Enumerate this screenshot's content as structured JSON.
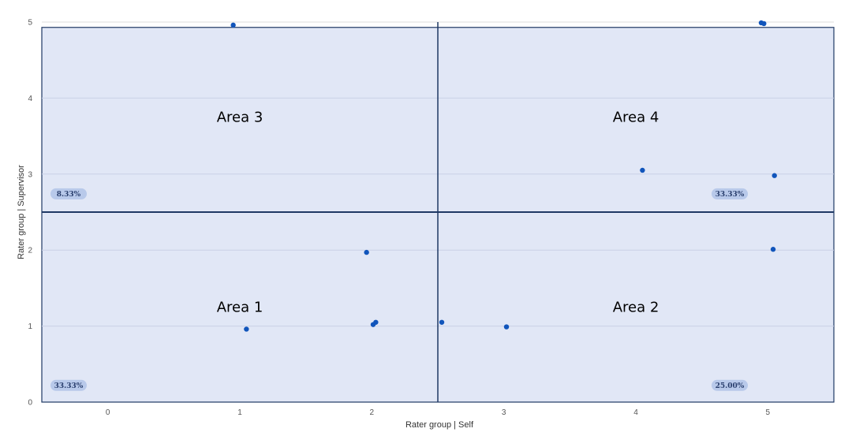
{
  "chart_data": {
    "type": "scatter",
    "title": "",
    "xlabel": "Rater group | Self",
    "ylabel": "Rater group | Supervisor",
    "xlim": [
      -0.5,
      5.5
    ],
    "ylim": [
      0,
      5
    ],
    "x_ticks": [
      "0",
      "1",
      "2",
      "3",
      "4",
      "5"
    ],
    "y_ticks": [
      "0",
      "1",
      "2",
      "3",
      "4",
      "5"
    ],
    "grid": true,
    "quadrant_divider": {
      "x": 2.5,
      "y": 2.5
    },
    "quadrant_region": {
      "x": [
        -0.5,
        5.5
      ],
      "y": [
        0,
        4.93
      ],
      "fill": "#e1e7f6",
      "border": "#1f3864"
    },
    "point_color": "#1155bb",
    "areas": [
      {
        "label": "Area 1",
        "percent": "33.33%"
      },
      {
        "label": "Area 2",
        "percent": "25.00%"
      },
      {
        "label": "Area 3",
        "percent": "8.33%"
      },
      {
        "label": "Area 4",
        "percent": "33.33%"
      }
    ],
    "points": [
      {
        "x": 0.95,
        "y": 4.96
      },
      {
        "x": 4.95,
        "y": 4.99
      },
      {
        "x": 4.97,
        "y": 4.98
      },
      {
        "x": 4.05,
        "y": 3.05
      },
      {
        "x": 5.05,
        "y": 2.98
      },
      {
        "x": 5.04,
        "y": 2.01
      },
      {
        "x": 1.96,
        "y": 1.97
      },
      {
        "x": 1.05,
        "y": 0.96
      },
      {
        "x": 2.01,
        "y": 1.02
      },
      {
        "x": 2.03,
        "y": 1.05
      },
      {
        "x": 2.53,
        "y": 1.05
      },
      {
        "x": 3.02,
        "y": 0.99
      }
    ]
  }
}
